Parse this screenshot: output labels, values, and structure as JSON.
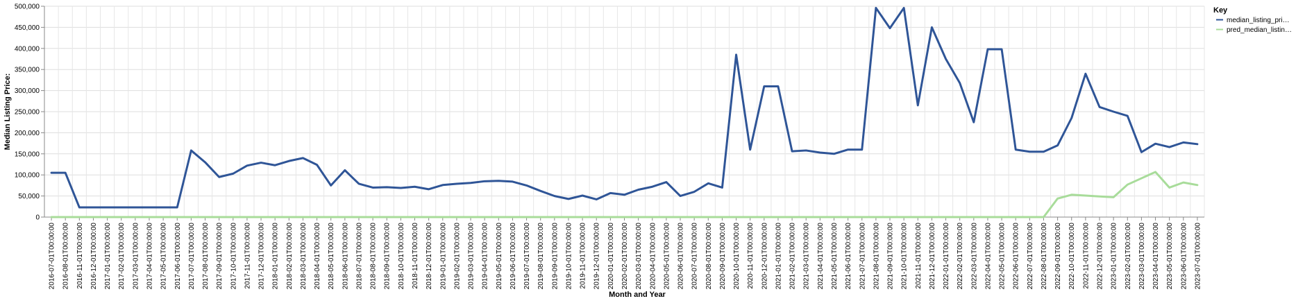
{
  "chart_data": {
    "type": "line",
    "title": "",
    "xlabel": "Month and Year",
    "ylabel": "Median Listing Price:",
    "ylim": [
      0,
      500000
    ],
    "y_ticks": [
      "0",
      "50,000",
      "100,000",
      "150,000",
      "200,000",
      "250,000",
      "300,000",
      "350,000",
      "400,000",
      "450,000",
      "500,000"
    ],
    "grid": true,
    "legend": {
      "title": "Key",
      "position": "right"
    },
    "x": [
      "2016-07-01T00:00:00",
      "2016-08-01T00:00:00",
      "2016-11-01T00:00:00",
      "2016-12-01T00:00:00",
      "2017-01-01T00:00:00",
      "2017-02-01T00:00:00",
      "2017-03-01T00:00:00",
      "2017-04-01T00:00:00",
      "2017-05-01T00:00:00",
      "2017-06-01T00:00:00",
      "2017-07-01T00:00:00",
      "2017-08-01T00:00:00",
      "2017-09-01T00:00:00",
      "2017-10-01T00:00:00",
      "2017-11-01T00:00:00",
      "2017-12-01T00:00:00",
      "2018-01-01T00:00:00",
      "2018-02-01T00:00:00",
      "2018-03-01T00:00:00",
      "2018-04-01T00:00:00",
      "2018-05-01T00:00:00",
      "2018-06-01T00:00:00",
      "2018-07-01T00:00:00",
      "2018-08-01T00:00:00",
      "2018-09-01T00:00:00",
      "2018-10-01T00:00:00",
      "2018-11-01T00:00:00",
      "2018-12-01T00:00:00",
      "2019-01-01T00:00:00",
      "2019-02-01T00:00:00",
      "2019-03-01T00:00:00",
      "2019-04-01T00:00:00",
      "2019-05-01T00:00:00",
      "2019-06-01T00:00:00",
      "2019-07-01T00:00:00",
      "2019-08-01T00:00:00",
      "2019-09-01T00:00:00",
      "2019-10-01T00:00:00",
      "2019-11-01T00:00:00",
      "2019-12-01T00:00:00",
      "2020-01-01T00:00:00",
      "2020-02-01T00:00:00",
      "2020-03-01T00:00:00",
      "2020-04-01T00:00:00",
      "2020-05-01T00:00:00",
      "2020-06-01T00:00:00",
      "2020-07-01T00:00:00",
      "2020-08-01T00:00:00",
      "2020-09-01T00:00:00",
      "2020-10-01T00:00:00",
      "2020-11-01T00:00:00",
      "2020-12-01T00:00:00",
      "2021-01-01T00:00:00",
      "2021-02-01T00:00:00",
      "2021-03-01T00:00:00",
      "2021-04-01T00:00:00",
      "2021-05-01T00:00:00",
      "2021-06-01T00:00:00",
      "2021-07-01T00:00:00",
      "2021-08-01T00:00:00",
      "2021-09-01T00:00:00",
      "2021-10-01T00:00:00",
      "2021-11-01T00:00:00",
      "2021-12-01T00:00:00",
      "2022-01-01T00:00:00",
      "2022-02-01T00:00:00",
      "2022-03-01T00:00:00",
      "2022-04-01T00:00:00",
      "2022-05-01T00:00:00",
      "2022-06-01T00:00:00",
      "2022-07-01T00:00:00",
      "2022-08-01T00:00:00",
      "2022-09-01T00:00:00",
      "2022-10-01T00:00:00",
      "2022-11-01T00:00:00",
      "2022-12-01T00:00:00",
      "2023-01-01T00:00:00",
      "2023-02-01T00:00:00",
      "2023-03-01T00:00:00",
      "2023-04-01T00:00:00",
      "2023-05-01T00:00:00",
      "2023-06-01T00:00:00",
      "2023-07-01T00:00:00"
    ],
    "series": [
      {
        "name": "median_listing_pri…",
        "color": "#2f5597",
        "values": [
          105000,
          105000,
          23000,
          23000,
          23000,
          23000,
          23000,
          23000,
          23000,
          23000,
          158000,
          130000,
          95000,
          103000,
          122000,
          129000,
          123000,
          133000,
          140000,
          124000,
          75000,
          111000,
          79000,
          70000,
          71000,
          69000,
          72000,
          66000,
          76000,
          79000,
          81000,
          85000,
          86000,
          84000,
          75000,
          62000,
          50000,
          43000,
          51000,
          42000,
          57000,
          53000,
          65000,
          72000,
          83000,
          50000,
          60000,
          80000,
          70000,
          385000,
          160000,
          310000,
          310000,
          156000,
          158000,
          153000,
          150000,
          160000,
          160000,
          496000,
          448000,
          496000,
          265000,
          450000,
          375000,
          318000,
          225000,
          398000,
          398000,
          160000,
          155000,
          155000,
          170000,
          235000,
          340000,
          261000,
          250000,
          240000,
          154000,
          174000,
          166000,
          177000,
          173000
        ]
      },
      {
        "name": "pred_median_listin…",
        "color": "#a8dc9a",
        "values": [
          0,
          0,
          0,
          0,
          0,
          0,
          0,
          0,
          0,
          0,
          0,
          0,
          0,
          0,
          0,
          0,
          0,
          0,
          0,
          0,
          0,
          0,
          0,
          0,
          0,
          0,
          0,
          0,
          0,
          0,
          0,
          0,
          0,
          0,
          0,
          0,
          0,
          0,
          0,
          0,
          0,
          0,
          0,
          0,
          0,
          0,
          0,
          0,
          0,
          0,
          0,
          0,
          0,
          0,
          0,
          0,
          0,
          0,
          0,
          0,
          0,
          0,
          0,
          0,
          0,
          0,
          0,
          0,
          0,
          0,
          0,
          0,
          44000,
          53000,
          51000,
          49000,
          47000,
          77000,
          92000,
          107000,
          70000,
          82000,
          76000
        ]
      }
    ]
  }
}
